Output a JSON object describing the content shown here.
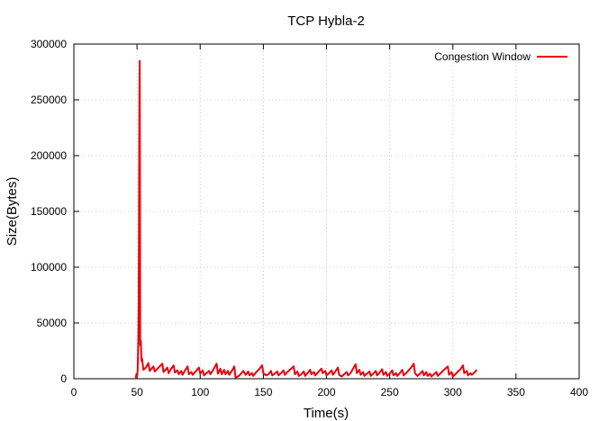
{
  "chart_data": {
    "type": "line",
    "title": "TCP Hybla-2",
    "xlabel": "Time(s)",
    "ylabel": "Size(Bytes)",
    "xlim": [
      0,
      400
    ],
    "ylim": [
      0,
      300000
    ],
    "x_ticks": [
      0,
      50,
      100,
      150,
      200,
      250,
      300,
      350,
      400
    ],
    "y_ticks": [
      0,
      50000,
      100000,
      150000,
      200000,
      250000,
      300000
    ],
    "grid": true,
    "legend_position": "top-right",
    "series": [
      {
        "name": "Congestion Window",
        "color": "#e8000b",
        "points": [
          [
            49.0,
            0
          ],
          [
            49.5,
            4000
          ],
          [
            50.0,
            2000
          ],
          [
            50.5,
            8000
          ],
          [
            51.0,
            34000
          ],
          [
            51.3,
            65000
          ],
          [
            51.5,
            120000
          ],
          [
            51.7,
            200000
          ],
          [
            51.9,
            260000
          ],
          [
            52.1,
            285000
          ],
          [
            52.3,
            180000
          ],
          [
            52.5,
            30000
          ],
          [
            53.0,
            34000
          ],
          [
            53.5,
            16000
          ],
          [
            54.0,
            18000
          ],
          [
            55.0,
            8000
          ],
          [
            57.0,
            10000
          ],
          [
            59.0,
            14000
          ],
          [
            60.0,
            7000
          ],
          [
            63.0,
            11000
          ],
          [
            64.0,
            6500
          ],
          [
            67.0,
            10000
          ],
          [
            70.0,
            13500
          ],
          [
            71.0,
            6000
          ],
          [
            74.0,
            10000
          ],
          [
            75.0,
            5000
          ],
          [
            77.0,
            9000
          ],
          [
            79.0,
            12000
          ],
          [
            80.0,
            5500
          ],
          [
            82.0,
            7500
          ],
          [
            83.0,
            4000
          ],
          [
            85.0,
            7000
          ],
          [
            86.0,
            3500
          ],
          [
            88.0,
            7500
          ],
          [
            90.0,
            11000
          ],
          [
            91.0,
            4000
          ],
          [
            93.0,
            6000
          ],
          [
            94.0,
            3500
          ],
          [
            96.0,
            6000
          ],
          [
            99.0,
            10000
          ],
          [
            100.0,
            4500
          ],
          [
            102.0,
            7500
          ],
          [
            103.0,
            3000
          ],
          [
            105.0,
            5000
          ],
          [
            107.0,
            7000
          ],
          [
            108.0,
            4000
          ],
          [
            110.0,
            7500
          ],
          [
            113.0,
            13500
          ],
          [
            114.0,
            4500
          ],
          [
            116.0,
            9000
          ],
          [
            117.0,
            4000
          ],
          [
            119.0,
            8000
          ],
          [
            120.0,
            4000
          ],
          [
            122.0,
            7000
          ],
          [
            123.0,
            3500
          ],
          [
            125.0,
            7000
          ],
          [
            127.0,
            11000
          ],
          [
            128.0,
            1000
          ],
          [
            130.0,
            2000
          ],
          [
            132.0,
            4000
          ],
          [
            134.0,
            7000
          ],
          [
            136.0,
            3500
          ],
          [
            138.0,
            6500
          ],
          [
            139.0,
            3000
          ],
          [
            141.0,
            5000
          ],
          [
            142.0,
            2500
          ],
          [
            144.0,
            5500
          ],
          [
            147.0,
            9000
          ],
          [
            149.0,
            12000
          ],
          [
            150.0,
            5000
          ],
          [
            152.0,
            3000
          ],
          [
            154.0,
            4000
          ],
          [
            156.0,
            7000
          ],
          [
            157.0,
            3000
          ],
          [
            159.0,
            4500
          ],
          [
            161.0,
            6500
          ],
          [
            162.0,
            3000
          ],
          [
            164.0,
            5000
          ],
          [
            166.0,
            7500
          ],
          [
            167.0,
            3500
          ],
          [
            169.0,
            6000
          ],
          [
            172.0,
            9000
          ],
          [
            174.0,
            11000
          ],
          [
            175.0,
            4000
          ],
          [
            177.0,
            6500
          ],
          [
            178.0,
            2500
          ],
          [
            180.0,
            4000
          ],
          [
            182.0,
            6500
          ],
          [
            183.0,
            2500
          ],
          [
            185.0,
            5000
          ],
          [
            187.0,
            8000
          ],
          [
            188.0,
            4000
          ],
          [
            190.0,
            6000
          ],
          [
            191.0,
            3000
          ],
          [
            193.0,
            5500
          ],
          [
            196.0,
            9000
          ],
          [
            197.0,
            5000
          ],
          [
            199.0,
            7000
          ],
          [
            200.0,
            3000
          ],
          [
            202.0,
            5000
          ],
          [
            204.0,
            7500
          ],
          [
            205.0,
            3500
          ],
          [
            207.0,
            6500
          ],
          [
            209.0,
            10000
          ],
          [
            210.0,
            3500
          ],
          [
            212.0,
            2000
          ],
          [
            214.0,
            4000
          ],
          [
            216.0,
            6000
          ],
          [
            217.0,
            3000
          ],
          [
            219.0,
            5000
          ],
          [
            221.0,
            9000
          ],
          [
            223.0,
            13000
          ],
          [
            224.0,
            5000
          ],
          [
            226.0,
            8000
          ],
          [
            227.0,
            3500
          ],
          [
            229.0,
            6000
          ],
          [
            230.0,
            2500
          ],
          [
            232.0,
            4500
          ],
          [
            234.0,
            6500
          ],
          [
            235.0,
            2500
          ],
          [
            237.0,
            4500
          ],
          [
            239.0,
            7000
          ],
          [
            240.0,
            3000
          ],
          [
            242.0,
            5500
          ],
          [
            244.0,
            8500
          ],
          [
            245.0,
            3500
          ],
          [
            247.0,
            6000
          ],
          [
            248.0,
            2500
          ],
          [
            250.0,
            4500
          ],
          [
            252.0,
            7500
          ],
          [
            253.0,
            3000
          ],
          [
            255.0,
            5000
          ],
          [
            256.0,
            2500
          ],
          [
            258.0,
            5000
          ],
          [
            260.0,
            8000
          ],
          [
            261.0,
            3000
          ],
          [
            263.0,
            5000
          ],
          [
            265.0,
            7500
          ],
          [
            267.0,
            10000
          ],
          [
            269.0,
            13500
          ],
          [
            270.0,
            5000
          ],
          [
            272.0,
            2500
          ],
          [
            274.0,
            4500
          ],
          [
            276.0,
            7000
          ],
          [
            277.0,
            3000
          ],
          [
            279.0,
            6000
          ],
          [
            280.0,
            2500
          ],
          [
            282.0,
            4500
          ],
          [
            283.0,
            2000
          ],
          [
            285.0,
            4000
          ],
          [
            287.0,
            6000
          ],
          [
            288.0,
            2500
          ],
          [
            290.0,
            4500
          ],
          [
            292.0,
            7000
          ],
          [
            294.0,
            9000
          ],
          [
            296.0,
            11000
          ],
          [
            297.0,
            3500
          ],
          [
            299.0,
            6000
          ],
          [
            300.0,
            2000
          ],
          [
            302.0,
            4000
          ],
          [
            304.0,
            6500
          ],
          [
            306.0,
            8500
          ],
          [
            308.0,
            12000
          ],
          [
            309.0,
            5000
          ],
          [
            311.0,
            7000
          ],
          [
            312.0,
            3000
          ],
          [
            314.0,
            5000
          ],
          [
            315.0,
            3500
          ],
          [
            317.0,
            5500
          ],
          [
            319.0,
            8000
          ]
        ]
      }
    ]
  }
}
